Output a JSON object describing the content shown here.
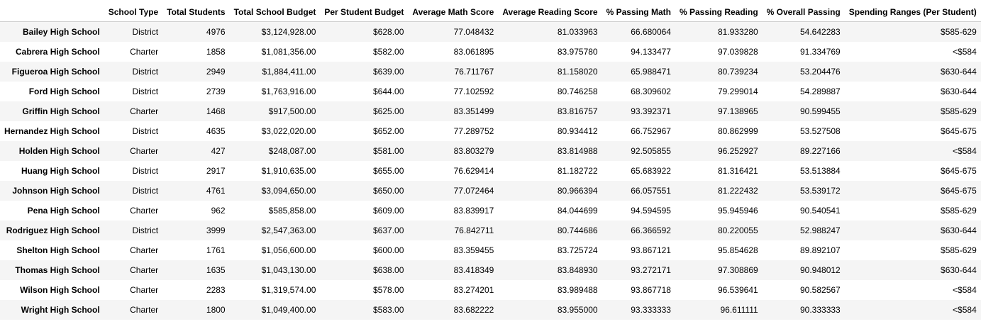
{
  "table": {
    "columns": [
      "",
      "School Type",
      "Total Students",
      "Total School Budget",
      "Per Student Budget",
      "Average Math Score",
      "Average Reading Score",
      "% Passing Math",
      "% Passing Reading",
      "% Overall Passing",
      "Spending Ranges (Per Student)"
    ],
    "rows": [
      [
        "Bailey High School",
        "District",
        "4976",
        "$3,124,928.00",
        "$628.00",
        "77.048432",
        "81.033963",
        "66.680064",
        "81.933280",
        "54.642283",
        "$585-629"
      ],
      [
        "Cabrera High School",
        "Charter",
        "1858",
        "$1,081,356.00",
        "$582.00",
        "83.061895",
        "83.975780",
        "94.133477",
        "97.039828",
        "91.334769",
        "<$584"
      ],
      [
        "Figueroa High School",
        "District",
        "2949",
        "$1,884,411.00",
        "$639.00",
        "76.711767",
        "81.158020",
        "65.988471",
        "80.739234",
        "53.204476",
        "$630-644"
      ],
      [
        "Ford High School",
        "District",
        "2739",
        "$1,763,916.00",
        "$644.00",
        "77.102592",
        "80.746258",
        "68.309602",
        "79.299014",
        "54.289887",
        "$630-644"
      ],
      [
        "Griffin High School",
        "Charter",
        "1468",
        "$917,500.00",
        "$625.00",
        "83.351499",
        "83.816757",
        "93.392371",
        "97.138965",
        "90.599455",
        "$585-629"
      ],
      [
        "Hernandez High School",
        "District",
        "4635",
        "$3,022,020.00",
        "$652.00",
        "77.289752",
        "80.934412",
        "66.752967",
        "80.862999",
        "53.527508",
        "$645-675"
      ],
      [
        "Holden High School",
        "Charter",
        "427",
        "$248,087.00",
        "$581.00",
        "83.803279",
        "83.814988",
        "92.505855",
        "96.252927",
        "89.227166",
        "<$584"
      ],
      [
        "Huang High School",
        "District",
        "2917",
        "$1,910,635.00",
        "$655.00",
        "76.629414",
        "81.182722",
        "65.683922",
        "81.316421",
        "53.513884",
        "$645-675"
      ],
      [
        "Johnson High School",
        "District",
        "4761",
        "$3,094,650.00",
        "$650.00",
        "77.072464",
        "80.966394",
        "66.057551",
        "81.222432",
        "53.539172",
        "$645-675"
      ],
      [
        "Pena High School",
        "Charter",
        "962",
        "$585,858.00",
        "$609.00",
        "83.839917",
        "84.044699",
        "94.594595",
        "95.945946",
        "90.540541",
        "$585-629"
      ],
      [
        "Rodriguez High School",
        "District",
        "3999",
        "$2,547,363.00",
        "$637.00",
        "76.842711",
        "80.744686",
        "66.366592",
        "80.220055",
        "52.988247",
        "$630-644"
      ],
      [
        "Shelton High School",
        "Charter",
        "1761",
        "$1,056,600.00",
        "$600.00",
        "83.359455",
        "83.725724",
        "93.867121",
        "95.854628",
        "89.892107",
        "$585-629"
      ],
      [
        "Thomas High School",
        "Charter",
        "1635",
        "$1,043,130.00",
        "$638.00",
        "83.418349",
        "83.848930",
        "93.272171",
        "97.308869",
        "90.948012",
        "$630-644"
      ],
      [
        "Wilson High School",
        "Charter",
        "2283",
        "$1,319,574.00",
        "$578.00",
        "83.274201",
        "83.989488",
        "93.867718",
        "96.539641",
        "90.582567",
        "<$584"
      ],
      [
        "Wright High School",
        "Charter",
        "1800",
        "$1,049,400.00",
        "$583.00",
        "83.682222",
        "83.955000",
        "93.333333",
        "96.611111",
        "90.333333",
        "<$584"
      ]
    ]
  }
}
